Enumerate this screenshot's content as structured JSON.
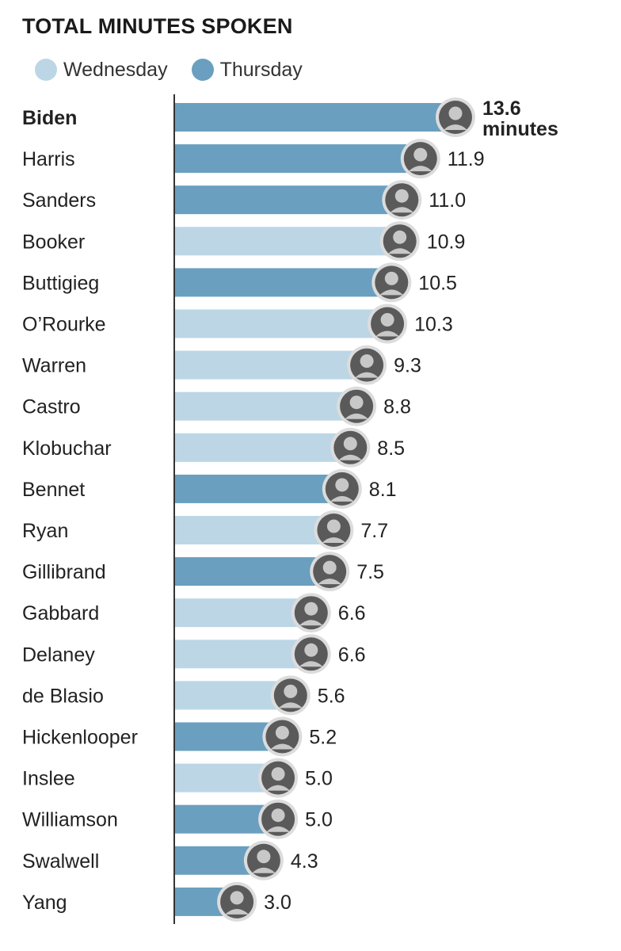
{
  "chart_data": {
    "type": "bar",
    "orientation": "horizontal",
    "title": "TOTAL MINUTES SPOKEN",
    "legend": [
      {
        "name": "Wednesday",
        "color": "#bcd6e6"
      },
      {
        "name": "Thursday",
        "color": "#6a9fbf"
      }
    ],
    "categories": [
      "Biden",
      "Harris",
      "Sanders",
      "Booker",
      "Buttigieg",
      "O’Rourke",
      "Warren",
      "Castro",
      "Klobuchar",
      "Bennet",
      "Ryan",
      "Gillibrand",
      "Gabbard",
      "Delaney",
      "de Blasio",
      "Hickenlooper",
      "Inslee",
      "Williamson",
      "Swalwell",
      "Yang"
    ],
    "values": [
      13.6,
      11.9,
      11.0,
      10.9,
      10.5,
      10.3,
      9.3,
      8.8,
      8.5,
      8.1,
      7.7,
      7.5,
      6.6,
      6.6,
      5.6,
      5.2,
      5.0,
      5.0,
      4.3,
      3.0
    ],
    "value_labels": [
      "13.6",
      "11.9",
      "11.0",
      "10.9",
      "10.5",
      "10.3",
      "9.3",
      "8.8",
      "8.5",
      "8.1",
      "7.7",
      "7.5",
      "6.6",
      "6.6",
      "5.6",
      "5.2",
      "5.0",
      "5.0",
      "4.3",
      "3.0"
    ],
    "unit_label": "minutes",
    "night": [
      "Thursday",
      "Thursday",
      "Thursday",
      "Wednesday",
      "Thursday",
      "Wednesday",
      "Wednesday",
      "Wednesday",
      "Wednesday",
      "Thursday",
      "Wednesday",
      "Thursday",
      "Wednesday",
      "Wednesday",
      "Wednesday",
      "Thursday",
      "Wednesday",
      "Thursday",
      "Thursday",
      "Thursday"
    ],
    "xlim": [
      0,
      13.6
    ],
    "xlabel": "",
    "ylabel": ""
  }
}
